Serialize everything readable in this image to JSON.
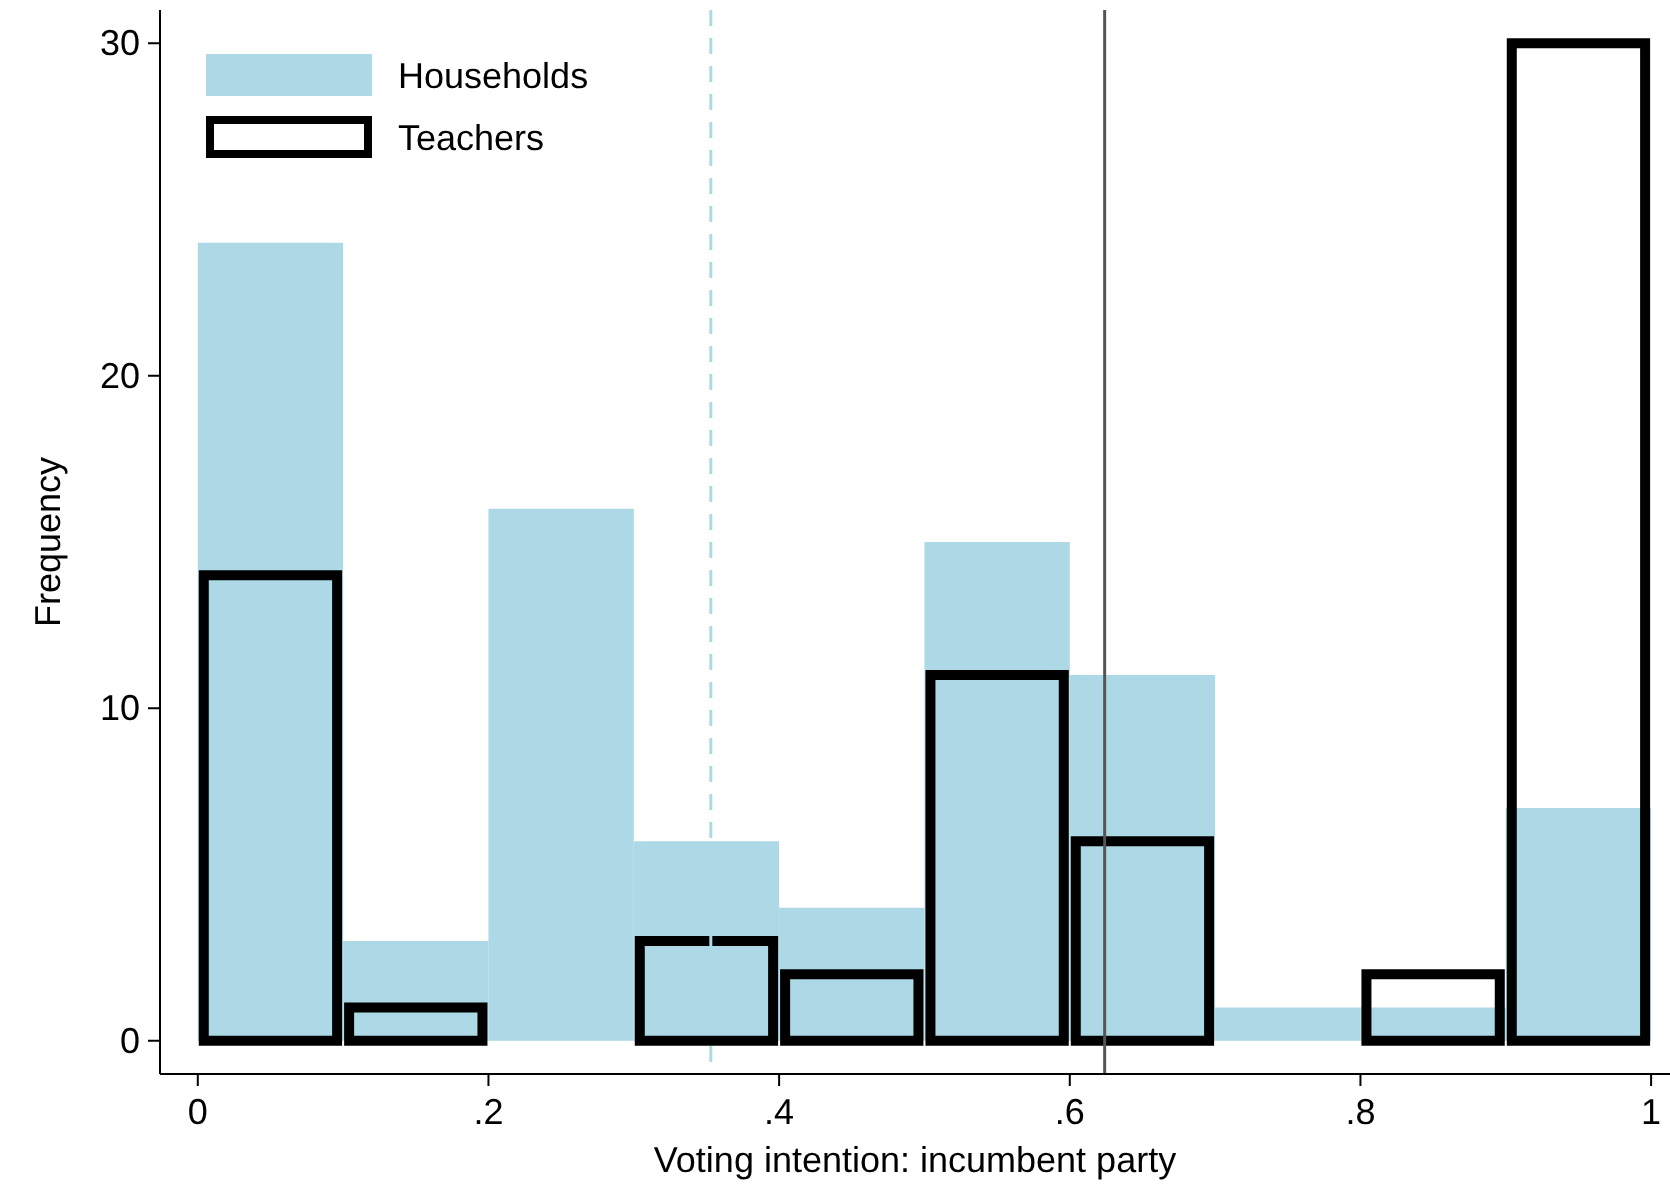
{
  "chart_data": {
    "type": "histogram",
    "xlabel": "Voting intention: incumbent party",
    "ylabel": "Frequency",
    "bins": [
      0,
      0.1,
      0.2,
      0.3,
      0.4,
      0.5,
      0.6,
      0.7,
      0.8,
      0.9,
      1
    ],
    "series": [
      {
        "name": "Households",
        "color": "#add8e6",
        "values": [
          24,
          3,
          16,
          6,
          4,
          15,
          11,
          1,
          1,
          7
        ]
      },
      {
        "name": "Teachers",
        "color": "#000000",
        "values": [
          14,
          1,
          0,
          3,
          2,
          11,
          6,
          0,
          2,
          30
        ]
      }
    ],
    "xlim": [
      -0.026,
      1.013
    ],
    "ylim": [
      -1,
      31
    ],
    "xticks": [
      0,
      {
        "value": 0.2,
        "label": ".2"
      },
      {
        "value": 0.4,
        "label": ".4"
      },
      {
        "value": 0.6,
        "label": ".6"
      },
      {
        "value": 0.8,
        "label": ".8"
      },
      1
    ],
    "yticks": [
      0,
      10,
      20,
      30
    ],
    "ref_lines": [
      {
        "axis": "x",
        "value": 0.353,
        "color": "#add8e6",
        "line_style": "dashed"
      },
      {
        "axis": "x",
        "value": 0.624,
        "color": "#555555",
        "line_style": "solid"
      }
    ],
    "legend": "top left",
    "grid": false
  }
}
